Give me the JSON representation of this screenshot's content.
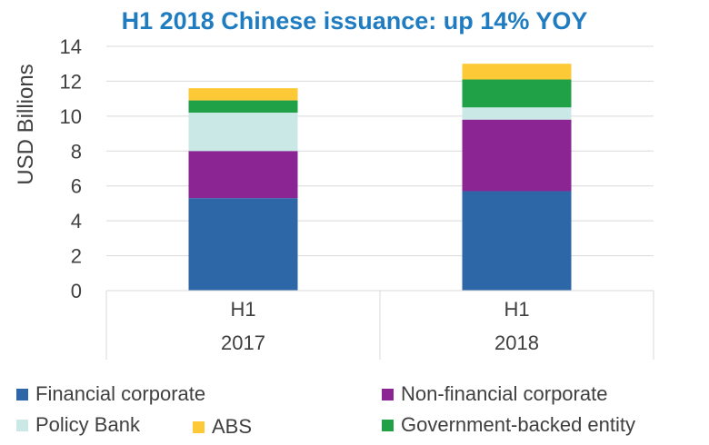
{
  "chart_data": {
    "type": "bar",
    "stacked": true,
    "title": "H1 2018 Chinese issuance: up 14% YOY",
    "xlabel": "",
    "ylabel": "USD Billions",
    "ylim": [
      0,
      14
    ],
    "yticks": [
      0,
      2,
      4,
      6,
      8,
      10,
      12,
      14
    ],
    "grid": true,
    "legend_position": "bottom",
    "categories": [
      {
        "top": "H1",
        "bottom": "2017"
      },
      {
        "top": "H1",
        "bottom": "2018"
      }
    ],
    "series": [
      {
        "name": "Financial corporate",
        "color": "#2e67a8",
        "values": [
          5.3,
          5.7
        ]
      },
      {
        "name": "Non-financial corporate",
        "color": "#8c2594",
        "values": [
          2.7,
          4.1
        ]
      },
      {
        "name": "Policy Bank",
        "color": "#c9e8e6",
        "values": [
          2.2,
          0.7
        ]
      },
      {
        "name": "Government-backed entity",
        "color": "#20a148",
        "values": [
          0.7,
          1.6
        ]
      },
      {
        "name": "ABS",
        "color": "#fdc936",
        "values": [
          0.7,
          0.9
        ]
      }
    ]
  }
}
